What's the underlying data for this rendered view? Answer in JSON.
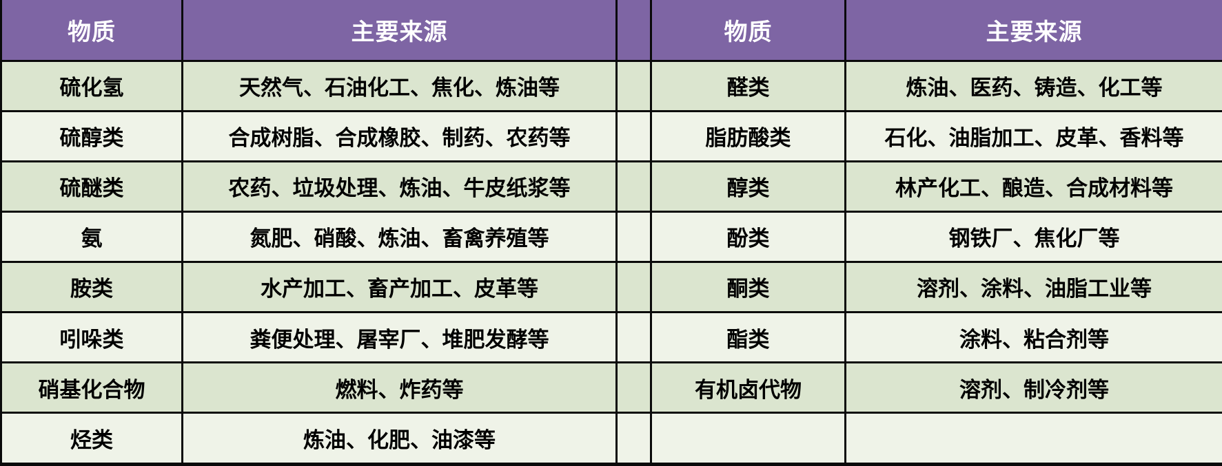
{
  "colors": {
    "header_bg": "#7e65a4",
    "row_odd_bg": "#dbe5cf",
    "row_even_bg": "#eff3e8",
    "border": "#0a0a0a",
    "header_text": "#ffffff",
    "body_text": "#000000"
  },
  "left_table": {
    "headers": {
      "substance": "物质",
      "source": "主要来源"
    },
    "rows": [
      {
        "substance": "硫化氢",
        "source": "天然气、石油化工、焦化、炼油等"
      },
      {
        "substance": "硫醇类",
        "source": "合成树脂、合成橡胶、制药、农药等"
      },
      {
        "substance": "硫醚类",
        "source": "农药、垃圾处理、炼油、牛皮纸浆等"
      },
      {
        "substance": "氨",
        "source": "氮肥、硝酸、炼油、畜禽养殖等"
      },
      {
        "substance": "胺类",
        "source": "水产加工、畜产加工、皮革等"
      },
      {
        "substance": "吲哚类",
        "source": "粪便处理、屠宰厂、堆肥发酵等"
      },
      {
        "substance": "硝基化合物",
        "source": "燃料、炸药等"
      },
      {
        "substance": "烃类",
        "source": "炼油、化肥、油漆等"
      }
    ]
  },
  "right_table": {
    "headers": {
      "substance": "物质",
      "source": "主要来源"
    },
    "rows": [
      {
        "substance": "醛类",
        "source": "炼油、医药、铸造、化工等"
      },
      {
        "substance": "脂肪酸类",
        "source": "石化、油脂加工、皮革、香料等"
      },
      {
        "substance": "醇类",
        "source": "林产化工、酿造、合成材料等"
      },
      {
        "substance": "酚类",
        "source": "钢铁厂、焦化厂等"
      },
      {
        "substance": "酮类",
        "source": "溶剂、涂料、油脂工业等"
      },
      {
        "substance": "酯类",
        "source": "涂料、粘合剂等"
      },
      {
        "substance": "有机卤代物",
        "source": "溶剂、制冷剂等"
      },
      {
        "substance": "",
        "source": ""
      }
    ]
  }
}
